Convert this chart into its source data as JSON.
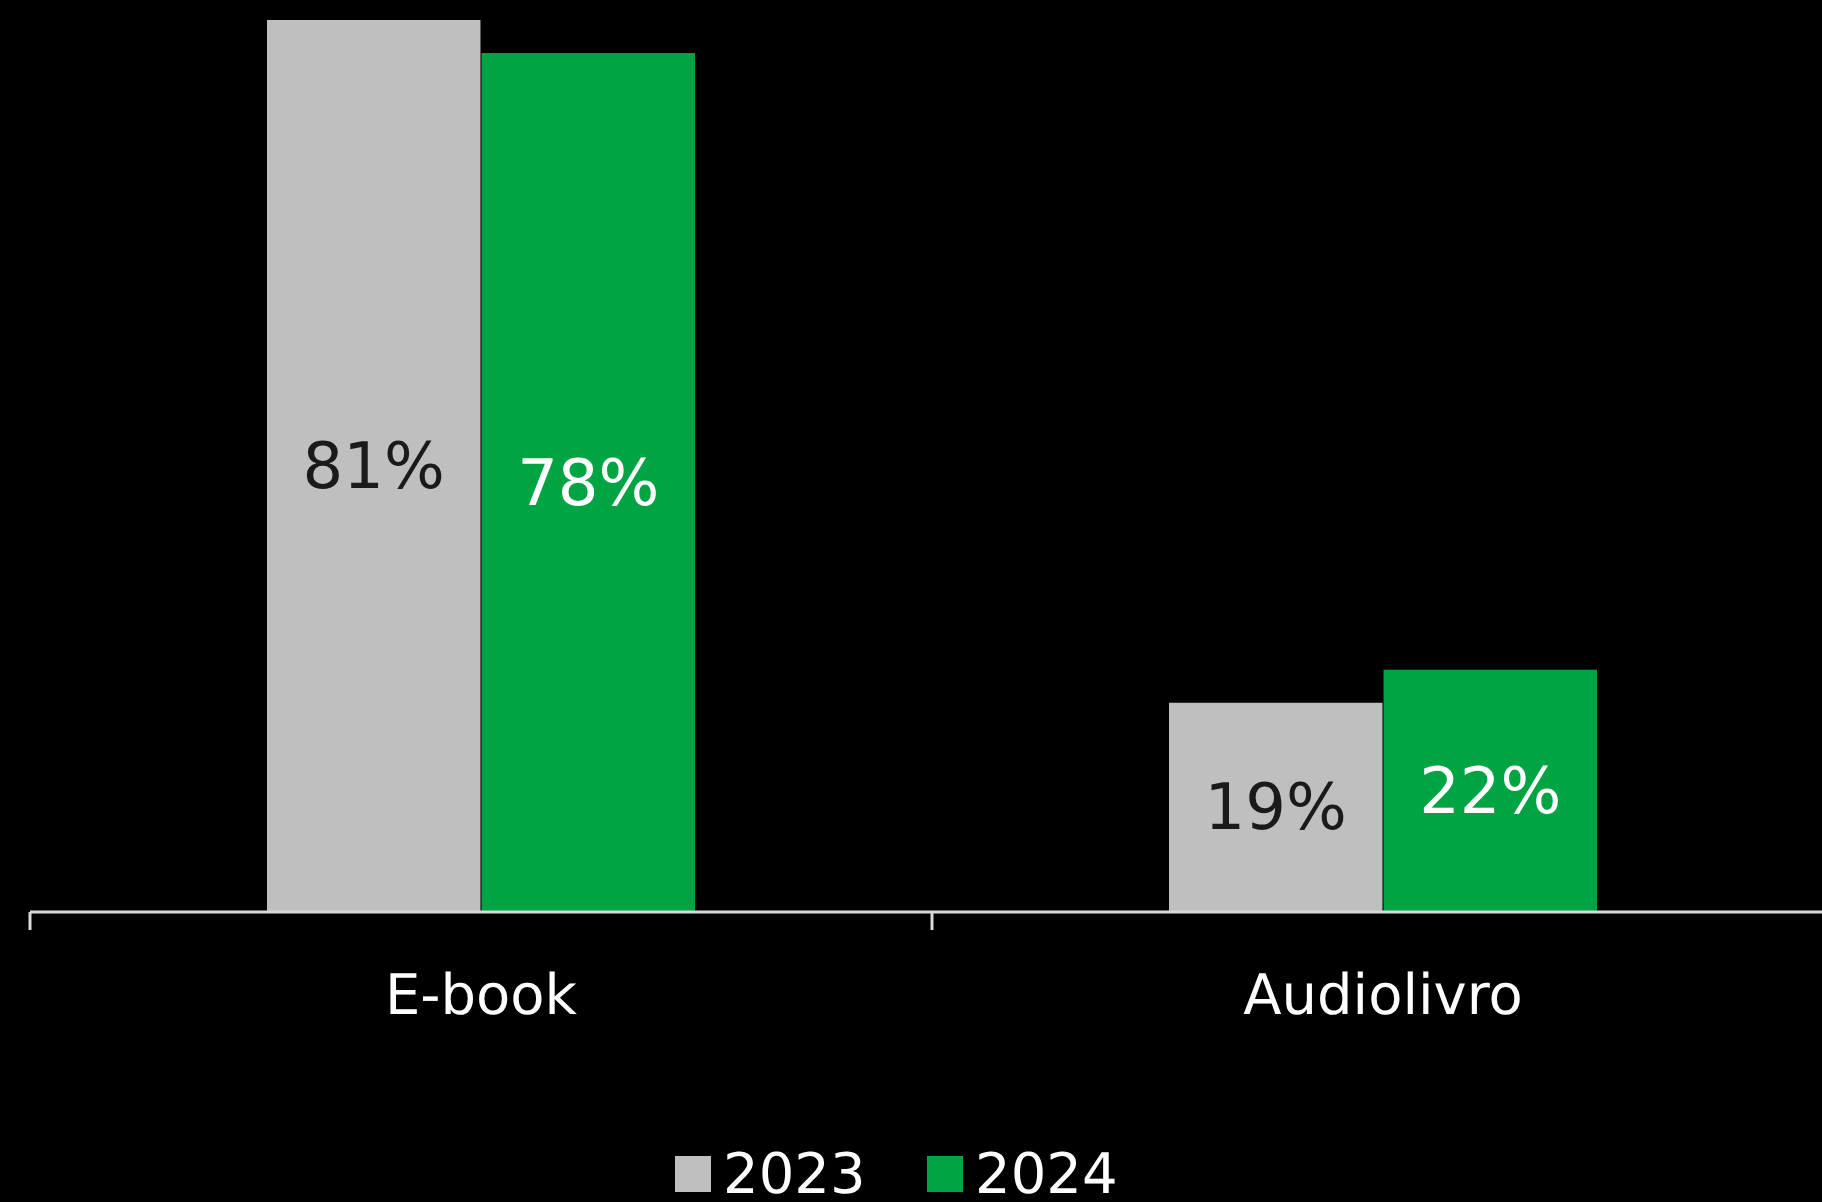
{
  "chart_data": {
    "type": "bar",
    "categories": [
      "E-book",
      "Audiolivro"
    ],
    "series": [
      {
        "name": "2023",
        "color": "#bfbfbf",
        "values": [
          81,
          19
        ],
        "value_labels": [
          "81%",
          "19%"
        ]
      },
      {
        "name": "2024",
        "color": "#00a443",
        "values": [
          78,
          22
        ],
        "value_labels": [
          "78%",
          "22%"
        ]
      }
    ],
    "legend": "bottom"
  }
}
